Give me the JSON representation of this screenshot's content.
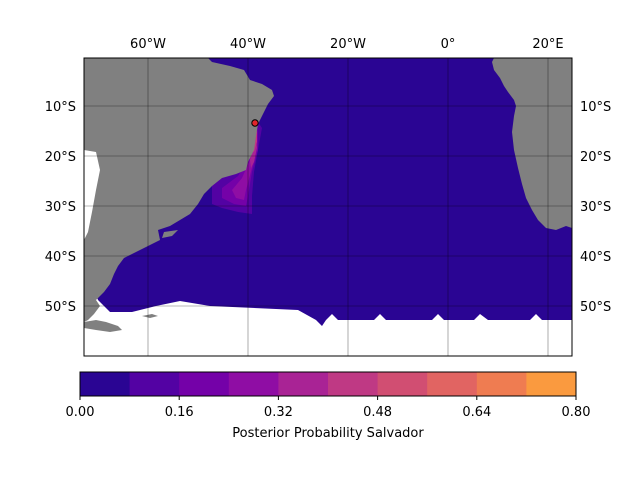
{
  "map": {
    "lon_labels": [
      "60°W",
      "40°W",
      "20°W",
      "0°",
      "20°E"
    ],
    "lat_labels": [
      "10°S",
      "20°S",
      "30°S",
      "40°S",
      "50°S"
    ],
    "colors": {
      "land": "#808080",
      "ocean_base": "#2a0593",
      "grid": "#000000",
      "marker_fill": "#e2252c",
      "marker_edge": "#000000"
    },
    "marker": {
      "name": "Salvador",
      "lon": -38.5,
      "lat": -13.0
    }
  },
  "colorbar": {
    "label": "Posterior Probability Salvador",
    "tick_labels": [
      "0.00",
      "0.16",
      "0.32",
      "0.48",
      "0.64",
      "0.80"
    ],
    "range": [
      0.0,
      0.8
    ],
    "levels": 10,
    "colors": [
      "#2a0593",
      "#5302a3",
      "#7401a8",
      "#8f0da4",
      "#a92395",
      "#bf3984",
      "#d14e72",
      "#e16462",
      "#ef7c51",
      "#fa9a3f"
    ]
  }
}
